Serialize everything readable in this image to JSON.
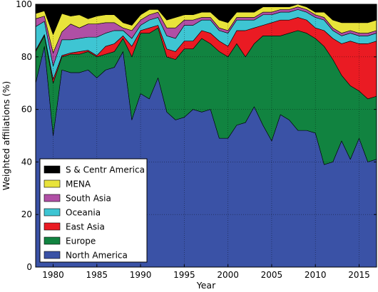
{
  "chart_data": {
    "type": "area",
    "stacked": true,
    "xlabel": "Year",
    "ylabel": "Weighted affiliations (%)",
    "xlim": [
      1978,
      2017
    ],
    "ylim": [
      0,
      100
    ],
    "xticks": [
      1980,
      1985,
      1990,
      1995,
      2000,
      2005,
      2010,
      2015
    ],
    "yticks": [
      0,
      20,
      40,
      60,
      80,
      100
    ],
    "grid": "dotted",
    "legend_position": "lower-left",
    "x": [
      1978,
      1979,
      1980,
      1981,
      1982,
      1983,
      1984,
      1985,
      1986,
      1987,
      1988,
      1989,
      1990,
      1991,
      1992,
      1993,
      1994,
      1995,
      1996,
      1997,
      1998,
      1999,
      2000,
      2001,
      2002,
      2003,
      2004,
      2005,
      2006,
      2007,
      2008,
      2009,
      2010,
      2011,
      2012,
      2013,
      2014,
      2015,
      2016,
      2017
    ],
    "series": [
      {
        "name": "North America",
        "color": "#3a52a6",
        "values": [
          70,
          84,
          50,
          75,
          74,
          74,
          75,
          72,
          75,
          76,
          82,
          56,
          66,
          64,
          72,
          59,
          56,
          57,
          60,
          59,
          60,
          49,
          49,
          54,
          55,
          61,
          54,
          48,
          58,
          56,
          52,
          52,
          51,
          39,
          40,
          48,
          41,
          49,
          40,
          41
        ]
      },
      {
        "name": "Europe",
        "color": "#118340",
        "values": [
          12,
          4,
          20,
          5,
          7,
          7,
          7,
          8,
          6,
          6,
          5,
          24,
          23,
          25,
          19,
          21,
          23,
          26,
          23,
          28,
          25,
          33,
          31,
          31,
          25,
          24,
          34,
          40,
          30,
          33,
          38,
          37,
          36,
          45,
          39,
          25,
          28,
          18,
          24,
          24
        ]
      },
      {
        "name": "East Asia",
        "color": "#ea1b23",
        "values": [
          0.5,
          0.5,
          1.5,
          0.5,
          0.5,
          1,
          0.5,
          0.5,
          3,
          3,
          1,
          4,
          1,
          2,
          1,
          3,
          3,
          3,
          3,
          3,
          4,
          4,
          4,
          5,
          10,
          6,
          4,
          5,
          6,
          5,
          5,
          5,
          4,
          6,
          8,
          12,
          17,
          18,
          21,
          21
        ]
      },
      {
        "name": "Oceania",
        "color": "#3ec5d3",
        "values": [
          9,
          5,
          5,
          6,
          5,
          5,
          5,
          7,
          5,
          5,
          2,
          3,
          2,
          3,
          3,
          5,
          5,
          6,
          6,
          4,
          5,
          4,
          5,
          4,
          4,
          3,
          4,
          3,
          3,
          3,
          3,
          3,
          4,
          4,
          3,
          3,
          3,
          3,
          3,
          3
        ]
      },
      {
        "name": "South Asia",
        "color": "#b04fa5",
        "values": [
          3,
          2,
          5,
          3,
          6,
          4,
          5,
          5,
          4,
          3,
          1,
          3,
          2,
          2,
          2,
          3,
          4,
          2,
          2,
          1,
          1,
          1,
          1,
          1,
          1,
          1,
          1,
          1,
          1,
          1,
          1,
          1,
          1,
          1,
          1,
          1,
          1,
          1,
          1,
          1
        ]
      },
      {
        "name": "MENA",
        "color": "#e8e33b",
        "values": [
          2,
          2,
          7,
          7,
          3,
          5,
          2,
          3,
          3,
          3,
          2,
          2,
          2,
          2,
          1,
          3,
          4,
          2,
          2,
          2,
          2,
          3,
          3,
          2,
          2,
          2,
          2,
          2,
          1,
          1,
          1,
          1,
          1,
          2,
          3,
          4,
          3,
          4,
          4,
          4
        ]
      },
      {
        "name": "S & Centr America",
        "color": "#000000",
        "values": [
          3.5,
          2.5,
          11.5,
          3.5,
          4.5,
          4,
          5.5,
          4.5,
          4,
          4,
          7,
          8,
          4,
          2,
          2,
          6,
          5,
          4,
          4,
          3,
          3,
          6,
          7,
          3,
          3,
          3,
          1,
          1,
          1,
          1,
          0,
          1,
          3,
          3,
          6,
          7,
          7,
          7,
          7,
          6
        ]
      }
    ]
  }
}
